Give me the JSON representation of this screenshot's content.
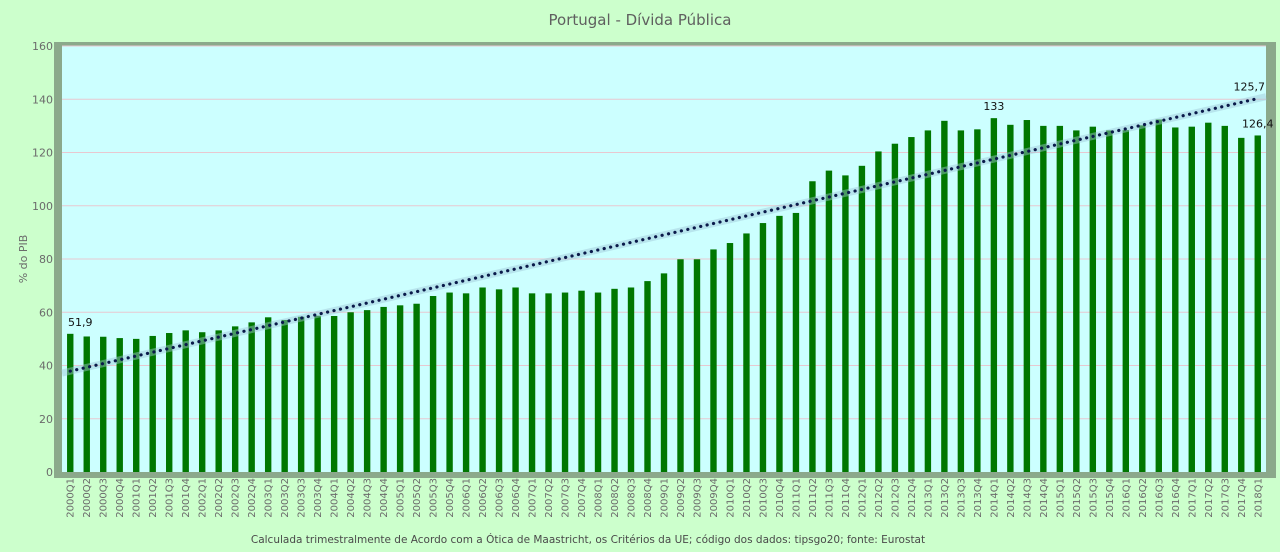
{
  "chart_data": {
    "type": "bar",
    "title": "Portugal - Dívida Pública",
    "ylabel": "% do PIB",
    "xlabel": "",
    "ylim": [
      0,
      160
    ],
    "yticks": [
      0,
      20,
      40,
      60,
      80,
      100,
      120,
      140,
      160
    ],
    "grid": true,
    "footnote": "Calculada trimestralmente de Acordo com a Ótica de Maastricht, os Critérios da UE; código dos dados: tipsgo20; fonte:  Eurostat",
    "colors": {
      "background": "#ccffcc",
      "plot": "#ccffff",
      "bar": "#007700",
      "trend": "#0a1a4a",
      "grid": "#e8c8d0"
    },
    "trendline": {
      "type": "linear",
      "style": "dotted"
    },
    "categories": [
      "2000Q1",
      "2000Q2",
      "2000Q3",
      "2000Q4",
      "2001Q1",
      "2001Q2",
      "2001Q3",
      "2001Q4",
      "2002Q1",
      "2002Q2",
      "2002Q3",
      "2002Q4",
      "2003Q1",
      "2003Q2",
      "2003Q3",
      "2003Q4",
      "2004Q1",
      "2004Q2",
      "2004Q3",
      "2004Q4",
      "2005Q1",
      "2005Q2",
      "2005Q3",
      "2005Q4",
      "2006Q1",
      "2006Q2",
      "2006Q3",
      "2006Q4",
      "2007Q1",
      "2007Q2",
      "2007Q3",
      "2007Q4",
      "2008Q1",
      "2008Q2",
      "2008Q3",
      "2008Q4",
      "2009Q1",
      "2009Q2",
      "2009Q3",
      "2009Q4",
      "2010Q1",
      "2010Q2",
      "2010Q3",
      "2010Q4",
      "2011Q1",
      "2011Q2",
      "2011Q3",
      "2011Q4",
      "2012Q1",
      "2012Q2",
      "2012Q3",
      "2012Q4",
      "2013Q1",
      "2013Q2",
      "2013Q3",
      "2013Q4",
      "2014Q1",
      "2014Q2",
      "2014Q3",
      "2014Q4",
      "2015Q1",
      "2015Q2",
      "2015Q3",
      "2015Q4",
      "2016Q1",
      "2016Q2",
      "2016Q3",
      "2016Q4",
      "2017Q1",
      "2017Q2",
      "2017Q3",
      "2017Q4",
      "2018Q1"
    ],
    "values": [
      51.9,
      50.9,
      50.8,
      50.3,
      50.0,
      51.1,
      52.2,
      53.2,
      52.5,
      53.2,
      54.7,
      56.2,
      58.1,
      57.1,
      58.3,
      58.7,
      58.6,
      60.0,
      60.8,
      62.0,
      62.6,
      63.2,
      66.1,
      67.4,
      67.1,
      69.3,
      68.6,
      69.3,
      67.1,
      67.1,
      67.4,
      68.1,
      67.4,
      68.8,
      69.3,
      71.7,
      74.6,
      79.9,
      79.9,
      83.6,
      86.0,
      89.6,
      93.5,
      96.2,
      97.3,
      109.2,
      113.2,
      111.4,
      115.0,
      120.4,
      123.3,
      125.8,
      128.3,
      131.9,
      128.3,
      128.7,
      132.9,
      130.4,
      132.2,
      130.0,
      130.0,
      128.3,
      129.7,
      128.3,
      128.4,
      130.2,
      132.4,
      129.4,
      129.7,
      131.2,
      130.0,
      125.5,
      126.4
    ],
    "data_labels": [
      {
        "category": "2000Q1",
        "text": "51,9"
      },
      {
        "category": "2014Q1",
        "text": "133"
      },
      {
        "category": "2018Q1",
        "text": "126,4"
      }
    ],
    "trend_label": {
      "text": "125,7"
    }
  }
}
